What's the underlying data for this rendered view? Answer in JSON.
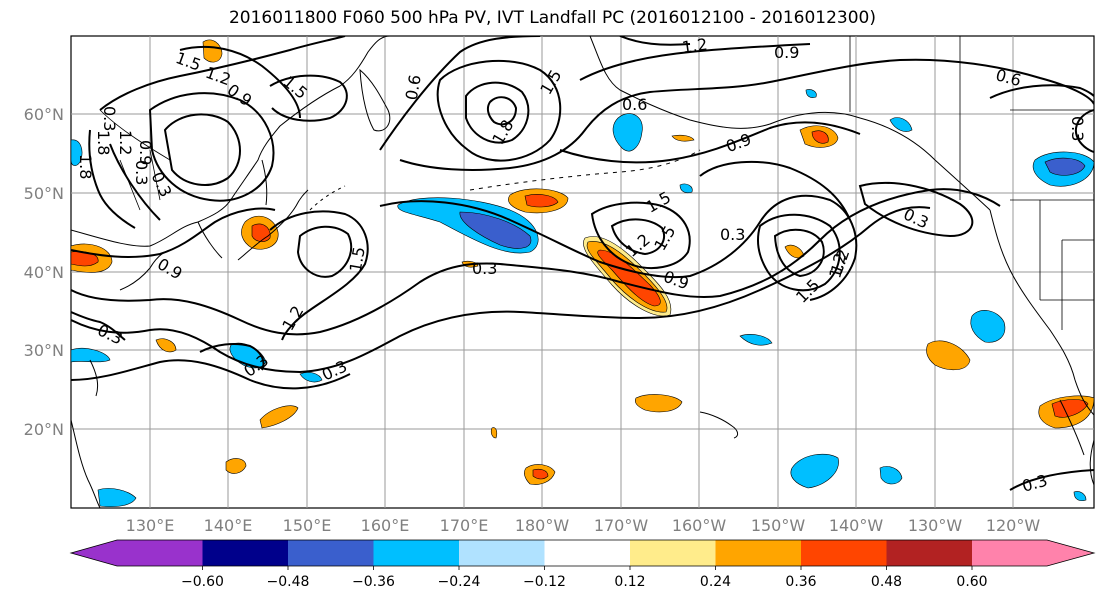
{
  "title": "2016011800 F060 500 hPa PV, IVT Landfall PC (2016012100 - 2016012300)",
  "map": {
    "lat_ticks": [
      "60°N",
      "50°N",
      "40°N",
      "30°N",
      "20°N"
    ],
    "lon_ticks": [
      "130°E",
      "140°E",
      "150°E",
      "160°E",
      "170°E",
      "180°W",
      "170°W",
      "160°W",
      "150°W",
      "140°W",
      "130°W",
      "120°W"
    ],
    "contour_labels": [
      "1.5",
      "1.2",
      "0.9",
      "1.5",
      "1.2",
      "0.9",
      "0.6",
      "0.6",
      "1.8",
      "1.5",
      "0.9",
      "1.8",
      "1.5",
      "0.3",
      "0.9",
      "1.2",
      "1.5",
      "0.3",
      "1.2",
      "0.9",
      "0.3",
      "1.5",
      "1.2",
      "0.3",
      "0.3",
      "0.3",
      "0.3",
      "1.5",
      "1.2",
      "0.3",
      "0.9",
      "0.3",
      "0.6",
      "1.8",
      "0.3",
      "0.3",
      "1.2"
    ],
    "colors": {
      "land_outline": "#000000",
      "grid": "#9a9a9a",
      "contour": "#000000"
    }
  },
  "colorbar": {
    "ticks": [
      "−0.60",
      "−0.48",
      "−0.36",
      "−0.24",
      "−0.12",
      "0.12",
      "0.24",
      "0.36",
      "0.48",
      "0.60"
    ],
    "bins": [
      "#9932CC",
      "#00008B",
      "#3A5FCD",
      "#00BFFF",
      "#B0E2FF",
      "#FFFFFF",
      "#FFEC8B",
      "#FFA500",
      "#FF4500",
      "#B22222",
      "#FF82AB"
    ]
  }
}
